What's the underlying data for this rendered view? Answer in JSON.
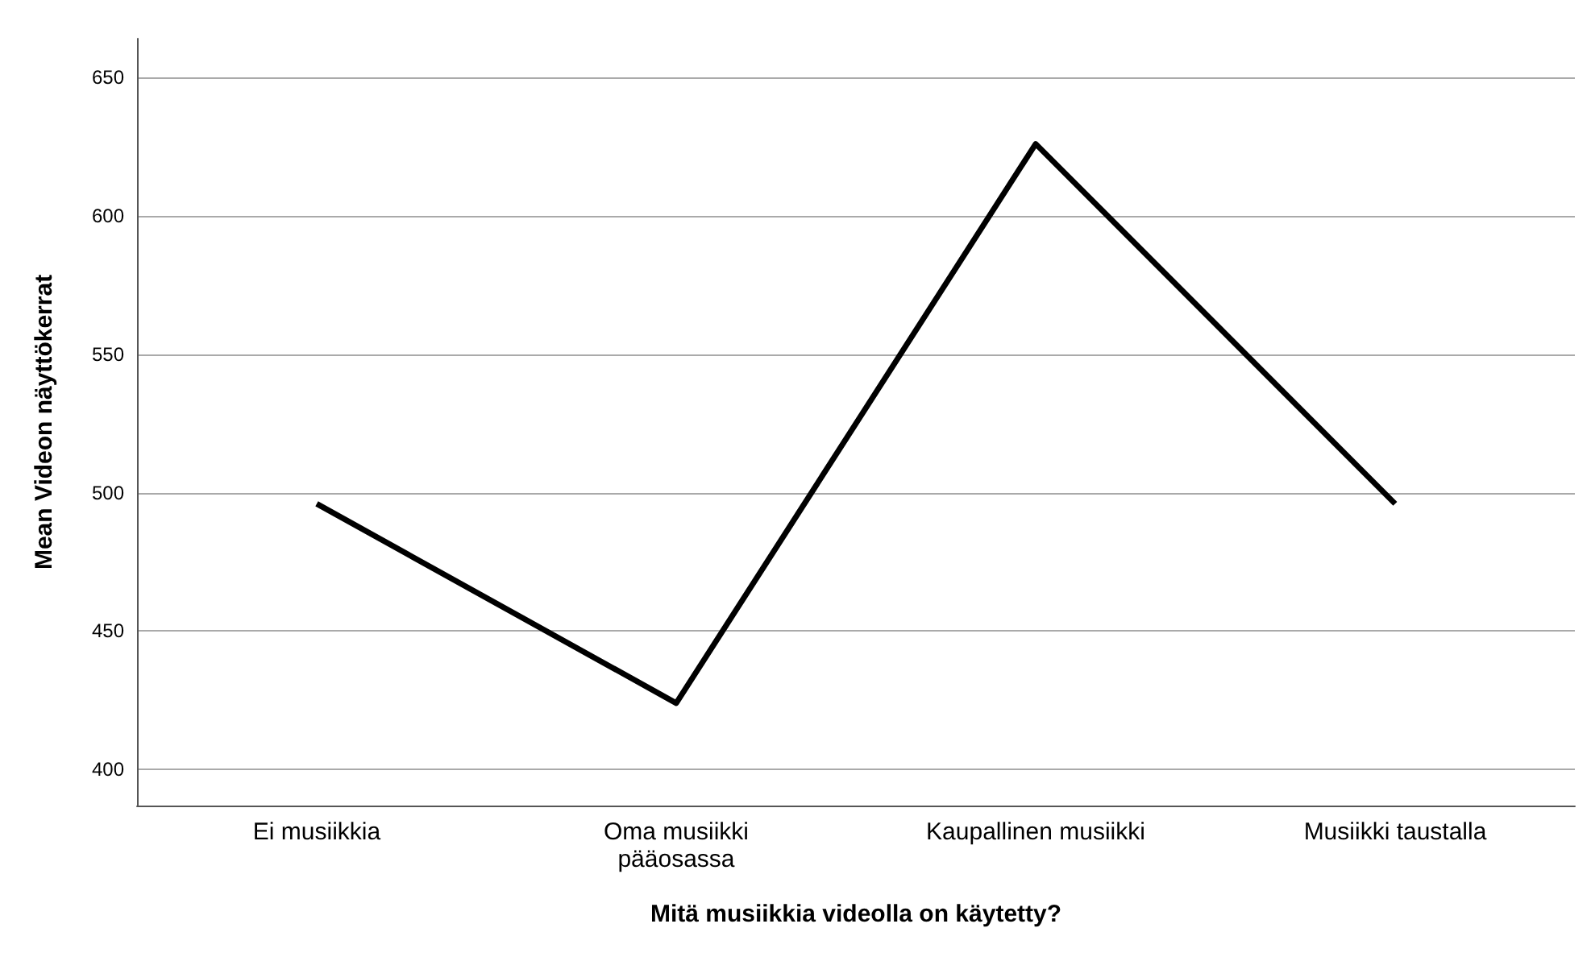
{
  "chart_data": {
    "type": "line",
    "xlabel": "Mitä musiikkia videolla on käytetty?",
    "ylabel": "Mean Videon näyttökerrat",
    "categories": [
      "Ei musiikkia",
      "Oma musiikki\npääosassa",
      "Kaupallinen musiikki",
      "Musiikki taustalla"
    ],
    "series": [
      {
        "color": "#000000",
        "values": [
          496,
          424,
          626,
          496
        ]
      }
    ],
    "ylim": [
      387,
      664
    ],
    "yticks": [
      400,
      450,
      500,
      550,
      600,
      650
    ],
    "grid": "y",
    "marker": "none",
    "line_style": "solid"
  }
}
